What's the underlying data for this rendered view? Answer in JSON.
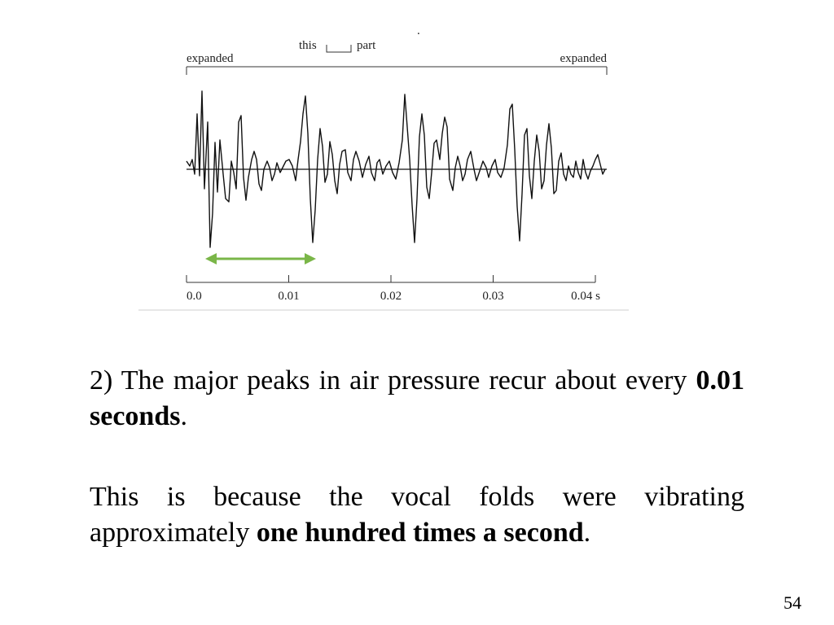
{
  "figure": {
    "label_left": "expanded",
    "label_right": "expanded",
    "label_this": "this",
    "label_part": "part",
    "dot": ".",
    "time_ticks": [
      "0.0",
      "0.01",
      "0.02",
      "0.03",
      "0.04 s"
    ],
    "arrow_color": "#7ab648",
    "waveform_color": "#111111"
  },
  "text": {
    "p1_lead": "2) The major peaks in air pressure recur about every ",
    "p1_bold": "0.01 seconds",
    "p1_end": ".",
    "p2_lead": "This is because the vocal folds were vibrating approximately ",
    "p2_bold": "one hundred times a second",
    "p2_end": "."
  },
  "page_number": "54"
}
